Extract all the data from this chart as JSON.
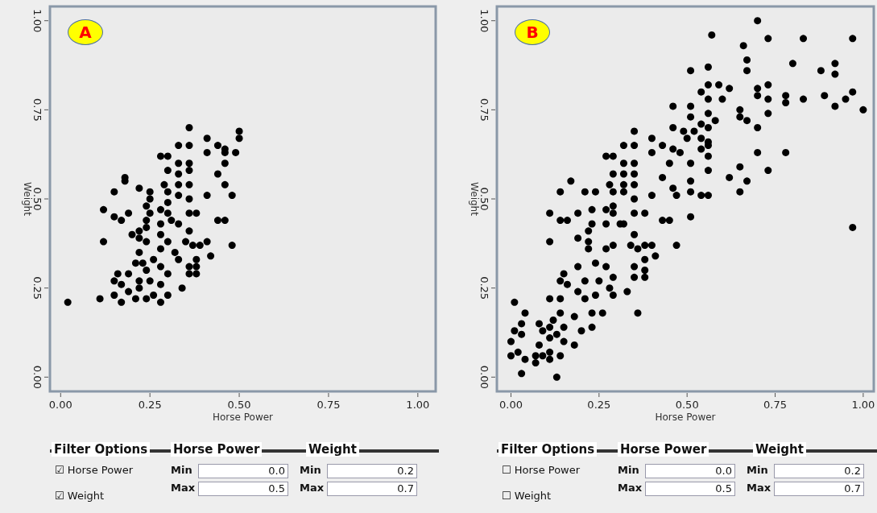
{
  "chart_data": [
    {
      "type": "scatter",
      "title": "A",
      "xlabel": "Horse Power",
      "ylabel": "Weight",
      "marker": "circle",
      "color": "#000000",
      "xlim": [
        -0.03,
        1.05
      ],
      "ylim": [
        -0.04,
        1.04
      ],
      "xticks": [
        {
          "value": 0,
          "label": "0.00"
        },
        {
          "value": 0.25,
          "label": "0.25"
        },
        {
          "value": 0.5,
          "label": "0.50"
        },
        {
          "value": 0.75,
          "label": "0.75"
        },
        {
          "value": 1,
          "label": "1.00"
        }
      ],
      "yticks": [
        {
          "value": 0,
          "label": "0.00"
        },
        {
          "value": 0.25,
          "label": "0.25"
        },
        {
          "value": 0.5,
          "label": "0.50"
        },
        {
          "value": 0.75,
          "label": "0.75"
        },
        {
          "value": 1,
          "label": "1.00"
        }
      ],
      "x": [
        0.02,
        0.36,
        0.5,
        0.5,
        0.41,
        0.44,
        0.46,
        0.46,
        0.49,
        0.41,
        0.33,
        0.36,
        0.28,
        0.3,
        0.33,
        0.36,
        0.3,
        0.33,
        0.36,
        0.46,
        0.44,
        0.46,
        0.48,
        0.41,
        0.18,
        0.18,
        0.15,
        0.22,
        0.25,
        0.25,
        0.29,
        0.3,
        0.33,
        0.33,
        0.36,
        0.36,
        0.3,
        0.3,
        0.28,
        0.28,
        0.24,
        0.25,
        0.12,
        0.15,
        0.17,
        0.19,
        0.36,
        0.38,
        0.44,
        0.46,
        0.31,
        0.33,
        0.24,
        0.12,
        0.2,
        0.22,
        0.24,
        0.22,
        0.24,
        0.28,
        0.3,
        0.36,
        0.35,
        0.37,
        0.39,
        0.41,
        0.48,
        0.42,
        0.38,
        0.33,
        0.32,
        0.28,
        0.26,
        0.22,
        0.23,
        0.36,
        0.38,
        0.36,
        0.38,
        0.3,
        0.28,
        0.24,
        0.21,
        0.16,
        0.19,
        0.15,
        0.22,
        0.25,
        0.28,
        0.17,
        0.19,
        0.22,
        0.34,
        0.3,
        0.26,
        0.21,
        0.11,
        0.15,
        0.17,
        0.28,
        0.24
      ],
      "values": [
        0.21,
        0.7,
        0.69,
        0.67,
        0.67,
        0.65,
        0.64,
        0.63,
        0.63,
        0.63,
        0.65,
        0.65,
        0.62,
        0.62,
        0.6,
        0.6,
        0.58,
        0.57,
        0.58,
        0.6,
        0.57,
        0.54,
        0.51,
        0.51,
        0.56,
        0.55,
        0.52,
        0.53,
        0.52,
        0.5,
        0.54,
        0.52,
        0.54,
        0.51,
        0.54,
        0.5,
        0.49,
        0.46,
        0.47,
        0.43,
        0.48,
        0.46,
        0.47,
        0.45,
        0.44,
        0.46,
        0.46,
        0.46,
        0.44,
        0.44,
        0.44,
        0.43,
        0.44,
        0.38,
        0.4,
        0.41,
        0.42,
        0.39,
        0.38,
        0.4,
        0.38,
        0.41,
        0.38,
        0.37,
        0.37,
        0.38,
        0.37,
        0.34,
        0.33,
        0.33,
        0.35,
        0.36,
        0.33,
        0.35,
        0.32,
        0.31,
        0.31,
        0.29,
        0.29,
        0.29,
        0.31,
        0.3,
        0.32,
        0.29,
        0.29,
        0.27,
        0.27,
        0.27,
        0.26,
        0.26,
        0.24,
        0.25,
        0.25,
        0.23,
        0.23,
        0.22,
        0.22,
        0.23,
        0.21,
        0.21,
        0.22
      ],
      "annotations": [
        "Filter Options",
        "Horse Power",
        "Weight",
        "☑ Horse Power",
        "☑ Weight",
        "Min",
        "0.0",
        "Max",
        "0.5",
        "Min",
        "0.2",
        "Max",
        "0.7"
      ]
    },
    {
      "type": "scatter",
      "title": "B",
      "xlabel": "Horse Power",
      "ylabel": "Weight",
      "marker": "circle",
      "color": "#000000",
      "xlim": [
        -0.04,
        1.03
      ],
      "ylim": [
        -0.04,
        1.04
      ],
      "xticks": [
        {
          "value": 0,
          "label": "0.00"
        },
        {
          "value": 0.25,
          "label": "0.25"
        },
        {
          "value": 0.5,
          "label": "0.50"
        },
        {
          "value": 0.75,
          "label": "0.75"
        },
        {
          "value": 1,
          "label": "1.00"
        }
      ],
      "yticks": [
        {
          "value": 0,
          "label": "0.00"
        },
        {
          "value": 0.25,
          "label": "0.25"
        },
        {
          "value": 0.5,
          "label": "0.50"
        },
        {
          "value": 0.75,
          "label": "0.75"
        },
        {
          "value": 1,
          "label": "1.00"
        }
      ],
      "x": [
        0.7,
        0.57,
        0.66,
        0.73,
        0.83,
        0.97,
        0.8,
        0.92,
        0.92,
        0.88,
        0.67,
        0.67,
        0.51,
        0.56,
        0.56,
        0.59,
        0.62,
        0.54,
        0.7,
        0.73,
        0.7,
        0.73,
        0.78,
        0.78,
        0.83,
        0.89,
        0.92,
        0.95,
        0.97,
        1.0,
        0.6,
        0.56,
        0.65,
        0.65,
        0.67,
        0.7,
        0.73,
        0.46,
        0.51,
        0.51,
        0.54,
        0.56,
        0.58,
        0.56,
        0.46,
        0.49,
        0.52,
        0.54,
        0.5,
        0.54,
        0.56,
        0.56,
        0.4,
        0.43,
        0.46,
        0.48,
        0.35,
        0.32,
        0.35,
        0.4,
        0.56,
        0.56,
        0.51,
        0.45,
        0.7,
        0.78,
        0.65,
        0.62,
        0.67,
        0.73,
        0.65,
        0.43,
        0.46,
        0.51,
        0.51,
        0.54,
        0.56,
        0.47,
        0.4,
        0.51,
        0.45,
        0.43,
        0.47,
        0.27,
        0.29,
        0.32,
        0.35,
        0.29,
        0.32,
        0.35,
        0.28,
        0.32,
        0.35,
        0.17,
        0.14,
        0.21,
        0.24,
        0.29,
        0.32,
        0.35,
        0.29,
        0.29,
        0.27,
        0.27,
        0.23,
        0.35,
        0.38,
        0.11,
        0.14,
        0.16,
        0.19,
        0.31,
        0.32,
        0.23,
        0.11,
        0.19,
        0.22,
        0.22,
        0.35,
        0.34,
        0.36,
        0.38,
        0.4,
        0.41,
        0.38,
        0.29,
        0.27,
        0.22,
        0.24,
        0.27,
        0.29,
        0.35,
        0.38,
        0.35,
        0.38,
        0.33,
        0.36,
        0.19,
        0.15,
        0.14,
        0.21,
        0.25,
        0.28,
        0.29,
        0.19,
        0.16,
        0.14,
        0.11,
        0.21,
        0.24,
        0.26,
        0.23,
        0.2,
        0.23,
        0.18,
        0.14,
        0.12,
        0.15,
        0.13,
        0.11,
        0.15,
        0.18,
        0.09,
        0.08,
        0.04,
        0.01,
        0.03,
        0.01,
        0.03,
        0.0,
        0.02,
        0.0,
        0.04,
        0.07,
        0.07,
        0.09,
        0.11,
        0.14,
        0.11,
        0.03,
        0.13,
        0.08,
        0.11,
        0.97
      ],
      "values": [
        1.0,
        0.96,
        0.93,
        0.95,
        0.95,
        0.95,
        0.88,
        0.88,
        0.85,
        0.86,
        0.89,
        0.86,
        0.86,
        0.87,
        0.82,
        0.82,
        0.81,
        0.8,
        0.81,
        0.82,
        0.79,
        0.78,
        0.79,
        0.77,
        0.78,
        0.79,
        0.76,
        0.78,
        0.8,
        0.75,
        0.78,
        0.78,
        0.75,
        0.73,
        0.72,
        0.7,
        0.74,
        0.76,
        0.76,
        0.73,
        0.71,
        0.74,
        0.72,
        0.7,
        0.7,
        0.69,
        0.69,
        0.67,
        0.67,
        0.64,
        0.66,
        0.65,
        0.67,
        0.65,
        0.64,
        0.63,
        0.69,
        0.65,
        0.65,
        0.63,
        0.62,
        0.58,
        0.6,
        0.6,
        0.63,
        0.63,
        0.59,
        0.56,
        0.55,
        0.58,
        0.52,
        0.56,
        0.53,
        0.55,
        0.52,
        0.51,
        0.51,
        0.51,
        0.51,
        0.45,
        0.44,
        0.44,
        0.37,
        0.62,
        0.62,
        0.6,
        0.6,
        0.57,
        0.57,
        0.57,
        0.54,
        0.54,
        0.54,
        0.55,
        0.52,
        0.52,
        0.52,
        0.52,
        0.52,
        0.5,
        0.48,
        0.46,
        0.47,
        0.43,
        0.47,
        0.46,
        0.46,
        0.46,
        0.44,
        0.44,
        0.46,
        0.43,
        0.43,
        0.43,
        0.38,
        0.39,
        0.41,
        0.38,
        0.4,
        0.37,
        0.36,
        0.33,
        0.37,
        0.34,
        0.37,
        0.37,
        0.36,
        0.36,
        0.32,
        0.31,
        0.28,
        0.31,
        0.3,
        0.28,
        0.28,
        0.24,
        0.18,
        0.31,
        0.29,
        0.27,
        0.27,
        0.27,
        0.25,
        0.23,
        0.24,
        0.26,
        0.22,
        0.22,
        0.22,
        0.23,
        0.18,
        0.18,
        0.13,
        0.14,
        0.17,
        0.18,
        0.16,
        0.14,
        0.12,
        0.11,
        0.1,
        0.09,
        0.13,
        0.15,
        0.18,
        0.21,
        0.15,
        0.13,
        0.12,
        0.1,
        0.07,
        0.06,
        0.05,
        0.06,
        0.04,
        0.06,
        0.07,
        0.06,
        0.05,
        0.01,
        0.0,
        0.09,
        0.14,
        0.42
      ],
      "annotations": [
        "Filter Options",
        "Horse Power",
        "Weight",
        "☐ Horse Power",
        "☐ Weight",
        "Min",
        "0.0",
        "Max",
        "0.5",
        "Min",
        "0.2",
        "Max",
        "0.7"
      ]
    }
  ]
}
